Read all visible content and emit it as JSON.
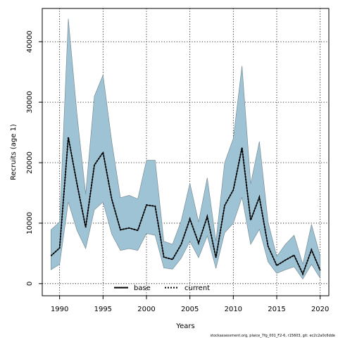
{
  "chart_data": {
    "type": "line",
    "xlabel": "Years",
    "ylabel": "Recruits (age 1)",
    "xlim": [
      1988,
      2021
    ],
    "ylim": [
      -2000,
      45500
    ],
    "x_ticks": [
      1990,
      1995,
      2000,
      2005,
      2010,
      2015,
      2020
    ],
    "y_ticks": [
      0,
      10000,
      20000,
      30000,
      40000
    ],
    "grid": true,
    "legend_position": "bottom-center",
    "band_color": "#9dc3d4",
    "band_edge_color": "#7b8e99",
    "x": [
      1989,
      1990,
      1991,
      1992,
      1993,
      1994,
      1995,
      1996,
      1997,
      1998,
      1999,
      2000,
      2001,
      2002,
      2003,
      2004,
      2005,
      2006,
      2007,
      2008,
      2009,
      2010,
      2011,
      2012,
      2013,
      2014,
      2015,
      2016,
      2017,
      2018,
      2019,
      2020
    ],
    "band": {
      "upper": [
        8900,
        10200,
        43800,
        28000,
        14800,
        31000,
        34500,
        23500,
        14200,
        14600,
        14000,
        20400,
        20400,
        7000,
        6500,
        10400,
        16600,
        10200,
        17500,
        7000,
        20000,
        24000,
        36000,
        16500,
        23500,
        10200,
        4500,
        6500,
        8000,
        3200,
        9800,
        4600
      ],
      "lower": [
        2300,
        3200,
        13500,
        8800,
        5800,
        12200,
        13500,
        8200,
        5500,
        5800,
        5500,
        8300,
        8000,
        2600,
        2400,
        4200,
        7000,
        4300,
        7900,
        2500,
        8400,
        10000,
        14300,
        6500,
        9000,
        3600,
        1700,
        2300,
        2800,
        750,
        3200,
        900
      ]
    },
    "series": [
      {
        "name": "base",
        "color": "#000000",
        "style": "solid",
        "values": [
          4600,
          5900,
          24200,
          16500,
          9300,
          19600,
          21700,
          14000,
          8900,
          9200,
          8800,
          13000,
          12800,
          4400,
          4000,
          6500,
          10700,
          6700,
          11100,
          4300,
          12900,
          15500,
          22500,
          10500,
          14300,
          6200,
          3000,
          3900,
          4700,
          1600,
          5600,
          2200
        ]
      },
      {
        "name": "current",
        "color": "#000000",
        "style": "dotted",
        "values": [
          4600,
          5900,
          24200,
          16500,
          9300,
          19600,
          21700,
          14000,
          8900,
          9200,
          8800,
          13000,
          12800,
          4400,
          4000,
          6500,
          10700,
          6700,
          11100,
          4300,
          12900,
          15500,
          22500,
          10500,
          14300,
          6200,
          3000,
          3900,
          4700,
          1600,
          5600,
          2200
        ]
      }
    ]
  },
  "footer": "stockassessment.org, plaice_7fg_001_F2-6, r15603, git: ec2c2a0c6dde"
}
